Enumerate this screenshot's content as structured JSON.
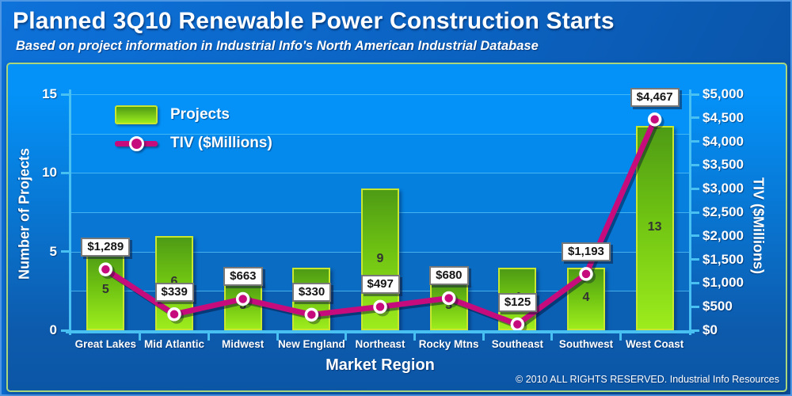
{
  "header": {
    "title": "Planned 3Q10 Renewable Power Construction Starts",
    "subtitle": "Based on project information in Industrial Info's North American Industrial Database"
  },
  "chart_data": {
    "type": "bar+line combo",
    "categories": [
      "Great Lakes",
      "Mid Atlantic",
      "Midwest",
      "New England",
      "Northeast",
      "Rocky Mtns",
      "Southeast",
      "Southwest",
      "West Coast"
    ],
    "series": [
      {
        "name": "Projects",
        "type": "bar",
        "axis": "left",
        "values": [
          5,
          6,
          3,
          4,
          9,
          3,
          4,
          4,
          13
        ],
        "value_labels": [
          "5",
          "6",
          "3",
          "4",
          "9",
          "3",
          "4",
          "4",
          "13"
        ],
        "color": "#7fd41c"
      },
      {
        "name": "TIV ($Millions)",
        "type": "line",
        "axis": "right",
        "values": [
          1289,
          339,
          663,
          330,
          497,
          680,
          125,
          1193,
          4467
        ],
        "value_labels": [
          "$1,289",
          "$339",
          "$663",
          "$330",
          "$497",
          "$680",
          "$125",
          "$1,193",
          "$4,467"
        ],
        "color": "#c60c7c"
      }
    ],
    "left_axis": {
      "title": "Number of Projects",
      "min": 0,
      "max": 15,
      "ticks": [
        0,
        5,
        10,
        15
      ],
      "tick_labels": [
        "0",
        "5",
        "10",
        "15"
      ]
    },
    "right_axis": {
      "title": "TIV ($Millions)",
      "min": 0,
      "max": 5000,
      "ticks": [
        0,
        500,
        1000,
        1500,
        2000,
        2500,
        3000,
        3500,
        4000,
        4500,
        5000
      ],
      "tick_labels": [
        "$0",
        "$500",
        "$1,000",
        "$1,500",
        "$2,000",
        "$2,500",
        "$3,000",
        "$3,500",
        "$4,000",
        "$4,500",
        "$5,000"
      ]
    },
    "x_axis": {
      "title": "Market Region"
    },
    "legend": {
      "position": "top-left-inside",
      "entries": [
        "Projects",
        "TIV ($Millions)"
      ]
    },
    "grid": {
      "horizontal": true,
      "interval_left_units": 2.5
    },
    "band_colors": [
      "#0492f8",
      "#048aec",
      "#0580de",
      "#0876d2",
      "#0a6cc2",
      "#0c60b4"
    ]
  },
  "footer": {
    "copyright": "© 2010 ALL RIGHTS RESERVED. Industrial Info Resources"
  },
  "colors": {
    "accent_bar": "#7fd41c",
    "bar_border": "#c9e72f",
    "accent_line": "#c60c7c",
    "axis": "#49c0f2",
    "panel_border": "#a9d67c",
    "background_top": "#0492f8",
    "background_bottom": "#0d5aac",
    "text": "#ffffff"
  }
}
